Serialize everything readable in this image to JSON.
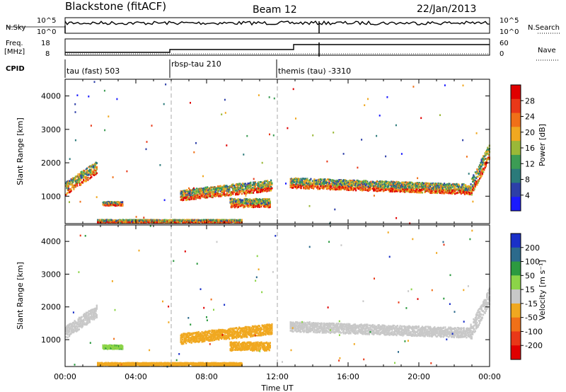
{
  "header": {
    "station": "Blackstone (fitACF)",
    "beam": "Beam 12",
    "date": "22/Jan/2013"
  },
  "status_panels": {
    "nsky_label": "N.Sky",
    "nsky_ticks": [
      "10^5",
      "10^0"
    ],
    "nsearch_label": "N.Search",
    "nsearch_ticks": [
      "10^5",
      "10^0"
    ],
    "freq_label": "Freq.",
    "freq_unit": "[MHz]",
    "freq_ticks": [
      "18",
      "8"
    ],
    "nave_label": "Nave",
    "nave_ticks": [
      "60",
      "0"
    ],
    "cpid_label": "CPID",
    "cpid_segments": [
      {
        "label": "tau (fast) 503",
        "start_hour": 0
      },
      {
        "label": "rbsp-tau 210",
        "start_hour": 6
      },
      {
        "label": "themis (tau) -3310",
        "start_hour": 12
      }
    ]
  },
  "chart_data": [
    {
      "type": "heatmap",
      "parameter": "power",
      "ylabel": "Slant Range [km]",
      "xlabel": "",
      "xlim": [
        0,
        24
      ],
      "ylim": [
        180,
        4500
      ],
      "yticks": [
        "1000",
        "2000",
        "3000",
        "4000"
      ],
      "colorbar_label": "Power [dB]",
      "colorbar_ticks": [
        "4",
        "8",
        "12",
        "16",
        "20",
        "24",
        "28"
      ],
      "colorbar_colors": [
        "#1a1aff",
        "#2d3fa8",
        "#2b7a7a",
        "#3c9c54",
        "#9ab838",
        "#f0a820",
        "#f07018",
        "#e83818",
        "#e00000"
      ],
      "echo_bands": [
        {
          "start": 0.0,
          "end": 1.8,
          "range_start": 1250,
          "range_end": 1900,
          "range_width": 380
        },
        {
          "start": 2.1,
          "end": 3.2,
          "range_start": 800,
          "range_end": 800,
          "range_width": 120
        },
        {
          "start": 6.5,
          "end": 11.7,
          "range_start": 1050,
          "range_end": 1350,
          "range_width": 320
        },
        {
          "start": 9.3,
          "end": 11.6,
          "range_start": 820,
          "range_end": 820,
          "range_width": 260
        },
        {
          "start": 12.7,
          "end": 22.9,
          "range_start": 1420,
          "range_end": 1230,
          "range_width": 300
        },
        {
          "start": 22.9,
          "end": 24.0,
          "range_start": 1250,
          "range_end": 2400,
          "range_width": 500
        },
        {
          "start": 1.8,
          "end": 10.0,
          "range_start": 280,
          "range_end": 280,
          "range_width": 80
        }
      ]
    },
    {
      "type": "heatmap",
      "parameter": "velocity",
      "ylabel": "Slant Range [km]",
      "xlabel": "Time UT",
      "xlim": [
        0,
        24
      ],
      "ylim": [
        180,
        4500
      ],
      "xticks": [
        "00:00",
        "04:00",
        "08:00",
        "12:00",
        "16:00",
        "20:00",
        "00:00"
      ],
      "yticks": [
        "1000",
        "2000",
        "3000",
        "4000"
      ],
      "colorbar_label": "Velocity [m s⁻¹]",
      "colorbar_ticks": [
        "200",
        "100",
        "50",
        "15",
        "-15",
        "-50",
        "-100",
        "-200"
      ],
      "colorbar_colors": [
        "#1a30c8",
        "#2c6a8c",
        "#2c9a40",
        "#8cd448",
        "#c8c8c8",
        "#f0a820",
        "#f07018",
        "#e83818",
        "#e00000"
      ],
      "echo_bands": [
        {
          "start": 0.0,
          "end": 1.8,
          "range_start": 1250,
          "range_end": 1900,
          "range_width": 380,
          "velocity": 0
        },
        {
          "start": 2.1,
          "end": 3.2,
          "range_start": 800,
          "range_end": 800,
          "range_width": 120,
          "velocity": 40
        },
        {
          "start": 6.5,
          "end": 11.7,
          "range_start": 1050,
          "range_end": 1350,
          "range_width": 320,
          "velocity": -30
        },
        {
          "start": 9.3,
          "end": 11.6,
          "range_start": 820,
          "range_end": 820,
          "range_width": 260,
          "velocity": -30
        },
        {
          "start": 12.7,
          "end": 22.9,
          "range_start": 1420,
          "range_end": 1230,
          "range_width": 300,
          "velocity": 0
        },
        {
          "start": 22.9,
          "end": 24.0,
          "range_start": 1250,
          "range_end": 2400,
          "range_width": 500,
          "velocity": 0
        },
        {
          "start": 1.8,
          "end": 10.0,
          "range_start": 280,
          "range_end": 280,
          "range_width": 80,
          "velocity": -30
        }
      ]
    }
  ]
}
